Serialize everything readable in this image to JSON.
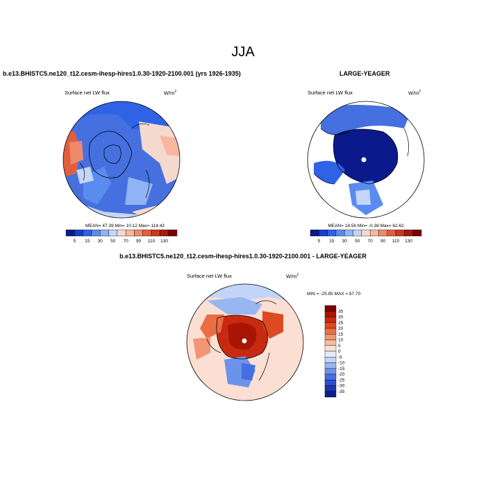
{
  "page": {
    "title": "JJA",
    "left_header": "b.e13.BHISTC5.ne120_t12.cesm-ihesp-hires1.0.30-1920-2100.001 (yrs 1926-1935)",
    "right_header": "LARGE-YEAGER",
    "bottom_header": "b.e13.BHISTC5.ne120_t12.cesm-ihesp-hires1.0.30-1920-2100.001 - LARGE-YEAGER"
  },
  "chart_data": [
    {
      "type": "heatmap",
      "projection": "north polar stereographic",
      "variable_label": "Surface net LW flux",
      "units_label": "W/m",
      "units_superscript": "2",
      "stats": {
        "mean": "47.39",
        "min": "10.12",
        "max": "114.43"
      },
      "stats_text": "MEAN=  47.39  Min=  10.12  Max= 114.43",
      "levels": [
        5,
        15,
        30,
        50,
        70,
        90,
        110,
        130
      ],
      "colors": [
        "#0a1a8c",
        "#1a3dc8",
        "#2f63e6",
        "#5a8cf0",
        "#8fb4f5",
        "#c3d6f7",
        "#f4d9cf",
        "#f7b79f",
        "#ef8a68",
        "#e0603e",
        "#c93a1d",
        "#a81a0b",
        "#7a0000"
      ],
      "colorbar_orientation": "horizontal"
    },
    {
      "type": "heatmap",
      "projection": "north polar stereographic",
      "variable_label": "Surface net LW flux",
      "units_label": "W/m",
      "units_superscript": "2",
      "stats": {
        "mean": "18.58",
        "min": "-0.38",
        "max": "62.62"
      },
      "stats_text": "MEAN=  18.58  Min=  -0.38  Max=  62.62",
      "levels": [
        5,
        15,
        30,
        50,
        70,
        90,
        110,
        130
      ],
      "colors": [
        "#0a1a8c",
        "#1a3dc8",
        "#2f63e6",
        "#5a8cf0",
        "#8fb4f5",
        "#c3d6f7",
        "#f4d9cf",
        "#f7b79f",
        "#ef8a68",
        "#e0603e",
        "#c93a1d",
        "#a81a0b",
        "#7a0000"
      ],
      "colorbar_orientation": "horizontal"
    },
    {
      "type": "heatmap",
      "projection": "north polar stereographic",
      "variable_label": "Surface net LW flux",
      "units_label": "W/m",
      "units_superscript": "2",
      "stats": {
        "min": "-25.85",
        "max": "67.70"
      },
      "stats_text": "MIN = -25.85 MAX =  67.70",
      "levels": [
        35,
        30,
        25,
        20,
        15,
        10,
        5,
        0,
        -5,
        -10,
        -15,
        -20,
        -25,
        -30,
        -35
      ],
      "colors": [
        "#800000",
        "#a81505",
        "#c72a10",
        "#dc4a22",
        "#ea6e44",
        "#f29572",
        "#f7bca4",
        "#fbdfd3",
        "#e4ecfb",
        "#c2d4f7",
        "#98b6f2",
        "#6c93ea",
        "#4670e0",
        "#2a4fd0",
        "#1a35b0",
        "#0d1f8a"
      ],
      "colorbar_orientation": "vertical"
    }
  ]
}
